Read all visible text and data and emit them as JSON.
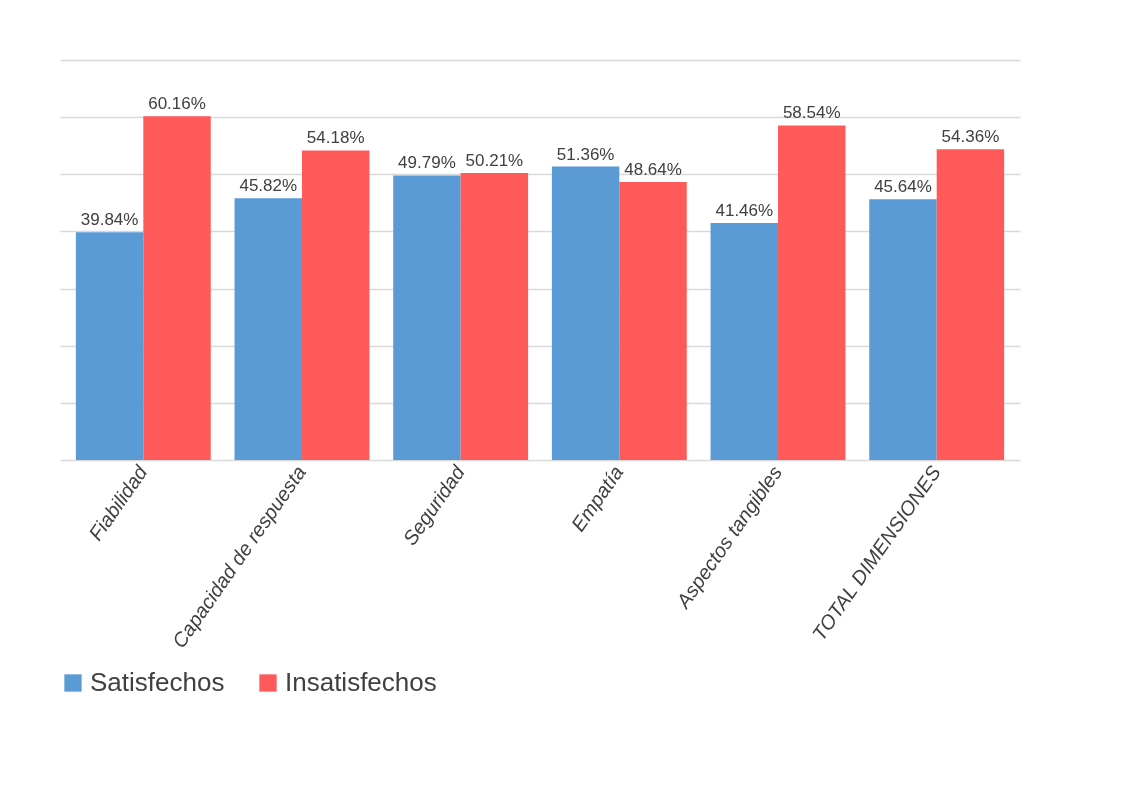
{
  "chart_data": {
    "type": "bar",
    "categories": [
      "Fiabilidad",
      "Capacidad de respuesta",
      "Seguridad",
      "Empatía",
      "Aspectos tangibles",
      "TOTAL DIMENSIONES"
    ],
    "series": [
      {
        "name": "Satisfechos",
        "color": "#5b9bd5",
        "values": [
          39.84,
          45.82,
          49.79,
          51.36,
          41.46,
          45.64
        ],
        "value_labels": [
          "39.84%",
          "45.82%",
          "49.79%",
          "51.36%",
          "41.46%",
          "45.64%"
        ]
      },
      {
        "name": "Insatisfechos",
        "color": "#ff5a5a",
        "values": [
          60.16,
          54.18,
          50.21,
          48.64,
          58.54,
          54.36
        ],
        "value_labels": [
          "60.16%",
          "54.18%",
          "50.21%",
          "48.64%",
          "58.54%",
          "54.36%"
        ]
      }
    ],
    "ylim": [
      0,
      70
    ],
    "yticks": [
      {
        "value": 0,
        "label": null
      },
      {
        "value": 10,
        "label": null
      },
      {
        "value": 20,
        "label": null
      },
      {
        "value": 30,
        "label": null
      },
      {
        "value": 40,
        "label": null
      },
      {
        "value": 50,
        "label": null
      },
      {
        "value": 60,
        "label": null
      },
      {
        "value": 70,
        "label": null
      }
    ],
    "grid": "y",
    "legend": "bottom",
    "tick_labels": "x"
  }
}
